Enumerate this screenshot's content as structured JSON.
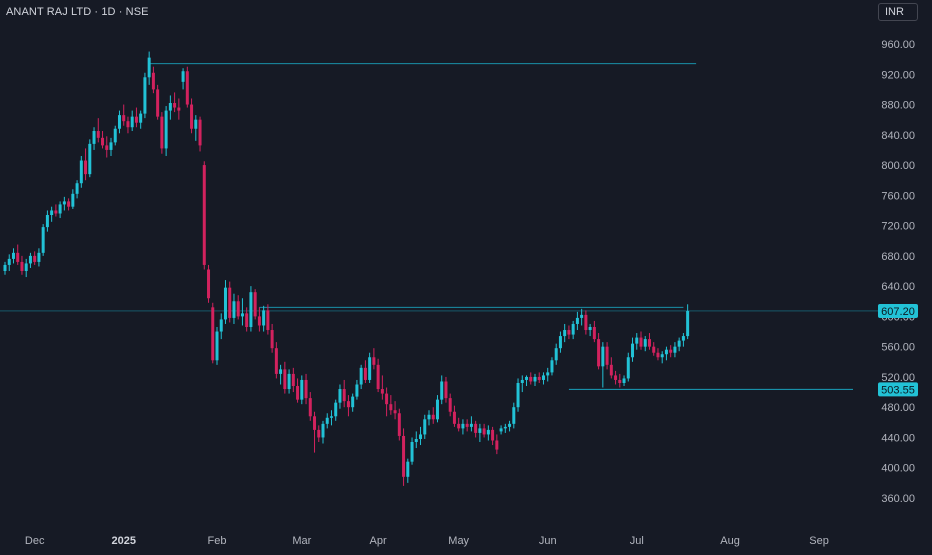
{
  "header": {
    "symbol_title": "ANANT RAJ LTD · 1D · NSE",
    "currency": "INR"
  },
  "colors": {
    "background": "#161a25",
    "up": "#22c2d6",
    "down": "#d2225e",
    "level_line": "#1aa9c4",
    "text": "#d1d4dc",
    "axis_text": "#b2b5be"
  },
  "chart_data": {
    "type": "candlestick",
    "title": "ANANT RAJ LTD · 1D · NSE",
    "currency": "INR",
    "ylim": [
      330,
      990
    ],
    "y_ticks": [
      "960.00",
      "920.00",
      "880.00",
      "840.00",
      "800.00",
      "760.00",
      "720.00",
      "680.00",
      "640.00",
      "600.00",
      "560.00",
      "520.00",
      "480.00",
      "440.00",
      "400.00",
      "360.00"
    ],
    "x_ticks": [
      {
        "label": "Dec",
        "bold": false,
        "index": 7
      },
      {
        "label": "2025",
        "bold": true,
        "index": 28
      },
      {
        "label": "Feb",
        "bold": false,
        "index": 50
      },
      {
        "label": "Mar",
        "bold": false,
        "index": 70
      },
      {
        "label": "Apr",
        "bold": false,
        "index": 88
      },
      {
        "label": "May",
        "bold": false,
        "index": 107
      },
      {
        "label": "Jun",
        "bold": false,
        "index": 128
      },
      {
        "label": "Jul",
        "bold": false,
        "index": 149
      },
      {
        "label": "Aug",
        "bold": false,
        "index": 171
      },
      {
        "label": "Sep",
        "bold": false,
        "index": 192
      }
    ],
    "price_labels": [
      {
        "value": 607.2,
        "text": "607.20"
      },
      {
        "value": 503.55,
        "text": "503.55"
      }
    ],
    "horizontal_levels": [
      {
        "value": 934,
        "from_index": 34,
        "to_index": 163,
        "full_width": false
      },
      {
        "value": 612,
        "from_index": 60,
        "to_index": 160,
        "full_width": false
      },
      {
        "value": 607.2,
        "from_index": 0,
        "to_index": 200,
        "full_width": true
      },
      {
        "value": 503.55,
        "from_index": 133,
        "to_index": 200,
        "full_width": false
      }
    ],
    "candles": [
      [
        660,
        672,
        655,
        668
      ],
      [
        668,
        682,
        660,
        676
      ],
      [
        676,
        690,
        670,
        684
      ],
      [
        684,
        695,
        668,
        672
      ],
      [
        672,
        680,
        655,
        660
      ],
      [
        660,
        676,
        652,
        670
      ],
      [
        670,
        684,
        664,
        680
      ],
      [
        680,
        686,
        668,
        672
      ],
      [
        672,
        690,
        666,
        684
      ],
      [
        684,
        722,
        680,
        718
      ],
      [
        718,
        740,
        712,
        734
      ],
      [
        734,
        745,
        725,
        740
      ],
      [
        740,
        748,
        732,
        736
      ],
      [
        736,
        752,
        730,
        748
      ],
      [
        748,
        758,
        740,
        752
      ],
      [
        752,
        756,
        740,
        745
      ],
      [
        745,
        768,
        742,
        762
      ],
      [
        762,
        780,
        756,
        776
      ],
      [
        776,
        812,
        770,
        806
      ],
      [
        806,
        822,
        780,
        788
      ],
      [
        788,
        834,
        784,
        828
      ],
      [
        828,
        850,
        820,
        845
      ],
      [
        845,
        862,
        830,
        836
      ],
      [
        836,
        845,
        822,
        826
      ],
      [
        826,
        838,
        810,
        820
      ],
      [
        820,
        836,
        812,
        830
      ],
      [
        830,
        852,
        826,
        848
      ],
      [
        848,
        872,
        842,
        866
      ],
      [
        866,
        880,
        852,
        858
      ],
      [
        858,
        864,
        842,
        850
      ],
      [
        850,
        872,
        845,
        864
      ],
      [
        864,
        876,
        850,
        856
      ],
      [
        856,
        872,
        848,
        868
      ],
      [
        868,
        922,
        862,
        916
      ],
      [
        916,
        950,
        906,
        942
      ],
      [
        922,
        930,
        895,
        900
      ],
      [
        900,
        906,
        860,
        864
      ],
      [
        864,
        870,
        815,
        822
      ],
      [
        822,
        878,
        812,
        872
      ],
      [
        872,
        892,
        860,
        882
      ],
      [
        882,
        896,
        870,
        876
      ],
      [
        876,
        888,
        860,
        872
      ],
      [
        910,
        928,
        900,
        924
      ],
      [
        924,
        930,
        876,
        880
      ],
      [
        880,
        888,
        842,
        848
      ],
      [
        848,
        866,
        832,
        860
      ],
      [
        860,
        864,
        818,
        826
      ],
      [
        800,
        805,
        662,
        668
      ],
      [
        662,
        668,
        618,
        624
      ],
      [
        612,
        618,
        538,
        542
      ],
      [
        542,
        586,
        536,
        580
      ],
      [
        580,
        604,
        570,
        596
      ],
      [
        596,
        648,
        590,
        638
      ],
      [
        638,
        646,
        592,
        598
      ],
      [
        598,
        630,
        590,
        620
      ],
      [
        620,
        628,
        596,
        600
      ],
      [
        600,
        624,
        588,
        604
      ],
      [
        604,
        612,
        580,
        586
      ],
      [
        586,
        640,
        580,
        632
      ],
      [
        632,
        636,
        596,
        600
      ],
      [
        600,
        612,
        580,
        588
      ],
      [
        588,
        614,
        580,
        608
      ],
      [
        608,
        616,
        576,
        582
      ],
      [
        582,
        590,
        552,
        558
      ],
      [
        558,
        566,
        518,
        524
      ],
      [
        524,
        536,
        510,
        530
      ],
      [
        530,
        540,
        498,
        504
      ],
      [
        504,
        530,
        498,
        524
      ],
      [
        524,
        532,
        500,
        508
      ],
      [
        508,
        518,
        486,
        490
      ],
      [
        490,
        522,
        484,
        516
      ],
      [
        516,
        524,
        484,
        492
      ],
      [
        492,
        500,
        462,
        468
      ],
      [
        468,
        474,
        420,
        450
      ],
      [
        450,
        456,
        434,
        440
      ],
      [
        440,
        462,
        432,
        458
      ],
      [
        458,
        472,
        452,
        466
      ],
      [
        466,
        476,
        456,
        468
      ],
      [
        468,
        490,
        462,
        486
      ],
      [
        486,
        510,
        478,
        504
      ],
      [
        504,
        516,
        480,
        488
      ],
      [
        488,
        496,
        468,
        480
      ],
      [
        480,
        498,
        474,
        494
      ],
      [
        494,
        516,
        490,
        510
      ],
      [
        510,
        536,
        504,
        532
      ],
      [
        532,
        542,
        512,
        516
      ],
      [
        516,
        552,
        512,
        546
      ],
      [
        546,
        558,
        530,
        536
      ],
      [
        536,
        544,
        500,
        504
      ],
      [
        504,
        522,
        490,
        498
      ],
      [
        498,
        506,
        468,
        484
      ],
      [
        484,
        496,
        470,
        476
      ],
      [
        476,
        488,
        464,
        472
      ],
      [
        472,
        478,
        436,
        442
      ],
      [
        442,
        452,
        376,
        388
      ],
      [
        388,
        412,
        380,
        408
      ],
      [
        408,
        440,
        404,
        434
      ],
      [
        434,
        448,
        426,
        438
      ],
      [
        438,
        454,
        430,
        444
      ],
      [
        444,
        470,
        438,
        464
      ],
      [
        464,
        476,
        456,
        470
      ],
      [
        470,
        480,
        458,
        464
      ],
      [
        464,
        496,
        460,
        490
      ],
      [
        490,
        522,
        484,
        514
      ],
      [
        514,
        520,
        486,
        492
      ],
      [
        492,
        498,
        468,
        474
      ],
      [
        474,
        482,
        454,
        458
      ],
      [
        458,
        466,
        448,
        452
      ],
      [
        452,
        464,
        444,
        458
      ],
      [
        458,
        464,
        448,
        454
      ],
      [
        454,
        468,
        448,
        458
      ],
      [
        458,
        462,
        440,
        446
      ],
      [
        446,
        458,
        434,
        452
      ],
      [
        452,
        458,
        440,
        444
      ],
      [
        444,
        456,
        436,
        450
      ],
      [
        450,
        454,
        430,
        436
      ],
      [
        436,
        444,
        418,
        424
      ],
      [
        448,
        456,
        444,
        452
      ],
      [
        452,
        458,
        446,
        454
      ],
      [
        454,
        462,
        448,
        458
      ],
      [
        458,
        486,
        452,
        480
      ],
      [
        480,
        518,
        474,
        512
      ],
      [
        512,
        522,
        500,
        516
      ],
      [
        516,
        522,
        508,
        520
      ],
      [
        520,
        526,
        510,
        514
      ],
      [
        514,
        524,
        508,
        520
      ],
      [
        520,
        526,
        512,
        516
      ],
      [
        516,
        526,
        510,
        522
      ],
      [
        522,
        532,
        514,
        526
      ],
      [
        526,
        546,
        522,
        542
      ],
      [
        542,
        564,
        536,
        558
      ],
      [
        558,
        580,
        552,
        574
      ],
      [
        574,
        590,
        566,
        582
      ],
      [
        582,
        588,
        570,
        576
      ],
      [
        576,
        594,
        570,
        590
      ],
      [
        590,
        606,
        582,
        598
      ],
      [
        598,
        610,
        588,
        602
      ],
      [
        602,
        608,
        576,
        582
      ],
      [
        582,
        590,
        574,
        586
      ],
      [
        586,
        594,
        566,
        570
      ],
      [
        570,
        578,
        530,
        534
      ],
      [
        534,
        566,
        506,
        560
      ],
      [
        560,
        566,
        530,
        536
      ],
      [
        536,
        546,
        518,
        522
      ],
      [
        522,
        528,
        510,
        516
      ],
      [
        516,
        524,
        506,
        512
      ],
      [
        512,
        522,
        508,
        518
      ],
      [
        518,
        552,
        514,
        546
      ],
      [
        546,
        572,
        540,
        564
      ],
      [
        564,
        578,
        556,
        572
      ],
      [
        572,
        580,
        556,
        560
      ],
      [
        560,
        574,
        554,
        570
      ],
      [
        570,
        578,
        556,
        560
      ],
      [
        560,
        566,
        548,
        552
      ],
      [
        552,
        558,
        542,
        546
      ],
      [
        546,
        554,
        538,
        550
      ],
      [
        550,
        560,
        542,
        556
      ],
      [
        556,
        562,
        546,
        552
      ],
      [
        552,
        566,
        546,
        560
      ],
      [
        560,
        572,
        554,
        568
      ],
      [
        568,
        578,
        560,
        574
      ],
      [
        574,
        616,
        570,
        607.2
      ]
    ]
  }
}
